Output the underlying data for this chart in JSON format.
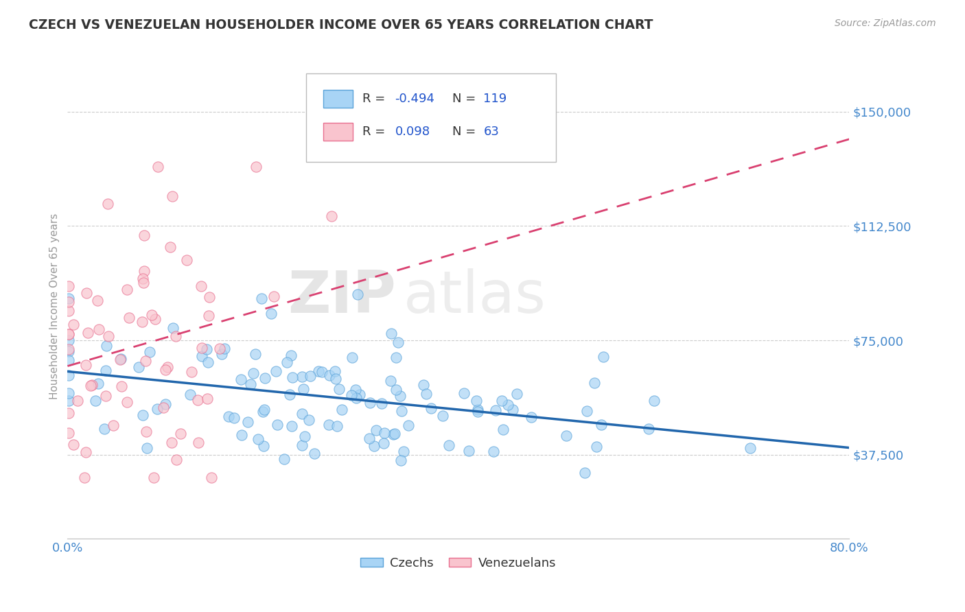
{
  "title": "CZECH VS VENEZUELAN HOUSEHOLDER INCOME OVER 65 YEARS CORRELATION CHART",
  "source_text": "Source: ZipAtlas.com",
  "ylabel": "Householder Income Over 65 years",
  "xlim": [
    0.0,
    0.8
  ],
  "ylim": [
    10000,
    162500
  ],
  "yticks": [
    37500,
    75000,
    112500,
    150000
  ],
  "xtick_positions": [
    0.0,
    0.1,
    0.2,
    0.3,
    0.4,
    0.5,
    0.6,
    0.7,
    0.8
  ],
  "xtick_labels": [
    "0.0%",
    "",
    "",
    "",
    "",
    "",
    "",
    "",
    "80.0%"
  ],
  "series": [
    {
      "name": "Czechs",
      "R": -0.494,
      "N": 119,
      "dot_color": "#A8D4F5",
      "edge_color": "#5BA3D9",
      "line_color": "#2166AC",
      "line_style": "solid",
      "alpha": 0.7
    },
    {
      "name": "Venezuelans",
      "R": 0.098,
      "N": 63,
      "dot_color": "#F9C4CE",
      "edge_color": "#E87090",
      "line_color": "#D94070",
      "line_style": "dashed",
      "alpha": 0.7
    }
  ],
  "watermark_zip": "ZIP",
  "watermark_atlas": "atlas",
  "background_color": "#FFFFFF",
  "grid_color": "#CCCCCC",
  "title_color": "#333333",
  "tick_label_color": "#4488CC",
  "ylabel_color": "#999999",
  "source_color": "#999999",
  "legend_r_color": "#2255CC",
  "legend_n_color": "#2255CC"
}
